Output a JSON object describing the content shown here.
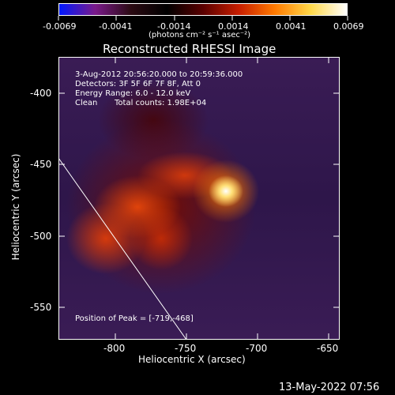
{
  "colorbar": {
    "tick_labels": [
      "-0.0069",
      "-0.0041",
      "-0.0014",
      "0.0014",
      "0.0041",
      "0.0069"
    ],
    "units_label": "(photons cm⁻² s⁻¹ asec⁻²)",
    "stops": [
      "#0018ff",
      "#7a1a8a",
      "#2a0a12",
      "#000000",
      "#5a0000",
      "#c81e00",
      "#ff7a00",
      "#ffd84a",
      "#ffffff"
    ]
  },
  "title": "Reconstructed RHESSI Image",
  "info": {
    "time_range": "3-Aug-2012 20:56:20.000 to 20:59:36.000",
    "detectors": "Detectors: 3F 5F 6F 7F 8F, Att 0",
    "energy": "Energy Range: 6.0 - 12.0 keV",
    "algorithm": "Clean",
    "counts": "Total counts: 1.98E+04",
    "peak": "Position of Peak = [-719,-468]"
  },
  "axes": {
    "xlabel": "Heliocentric X (arcsec)",
    "ylabel": "Heliocentric Y (arcsec)",
    "x_ticks": [
      "-800",
      "-750",
      "-700",
      "-650"
    ],
    "y_ticks": [
      "-400",
      "-450",
      "-500",
      "-550"
    ]
  },
  "footer": {
    "date": "13-May-2022 07:56"
  }
}
